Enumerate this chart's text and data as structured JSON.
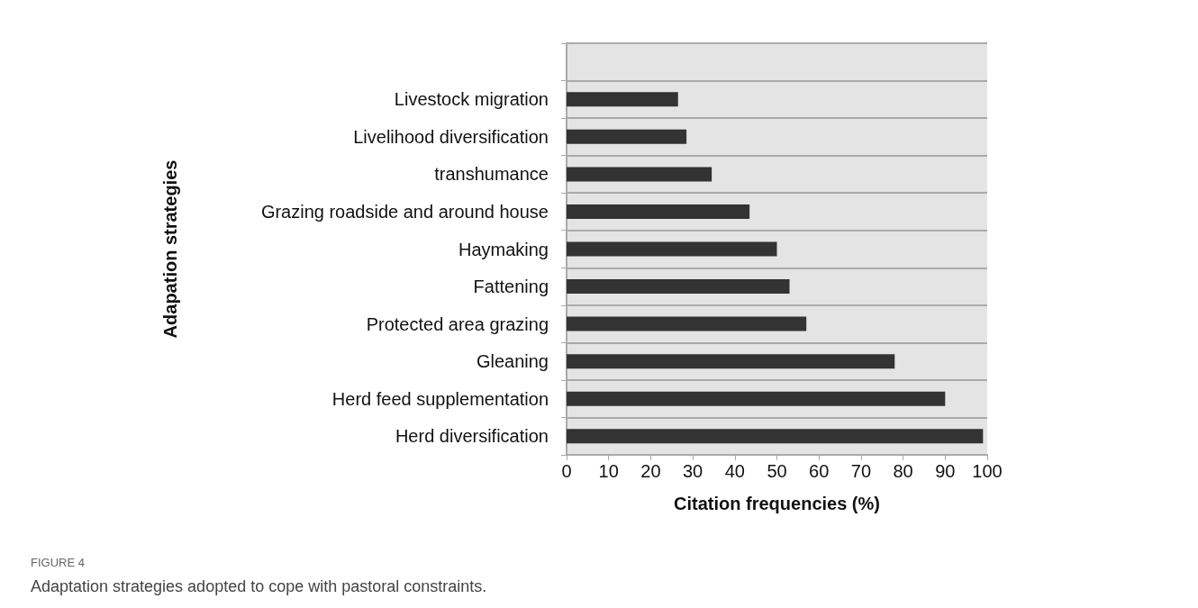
{
  "chart_data": {
    "type": "bar",
    "orientation": "horizontal",
    "categories": [
      null,
      "Livestock migration",
      "Livelihood diversification",
      "transhumance",
      "Grazing roadside and around house",
      "Haymaking",
      "Fattening",
      "Protected area grazing",
      "Gleaning",
      "Herd feed supplementation",
      "Herd diversification"
    ],
    "values": [
      null,
      26.5,
      28.5,
      34.5,
      43.5,
      50,
      53,
      57,
      78,
      90,
      99
    ],
    "color": "#333333",
    "xlim": [
      0,
      100
    ],
    "xticks": [
      0,
      10,
      20,
      30,
      40,
      50,
      60,
      70,
      80,
      90,
      100
    ],
    "xlabel": "Citation frequencies (%)",
    "ylabel": "Adapation strategies",
    "grid": "y",
    "annotations": [
      "FIGURE 4",
      "Adaptation strategies adopted to cope with pastoral constraints."
    ]
  }
}
